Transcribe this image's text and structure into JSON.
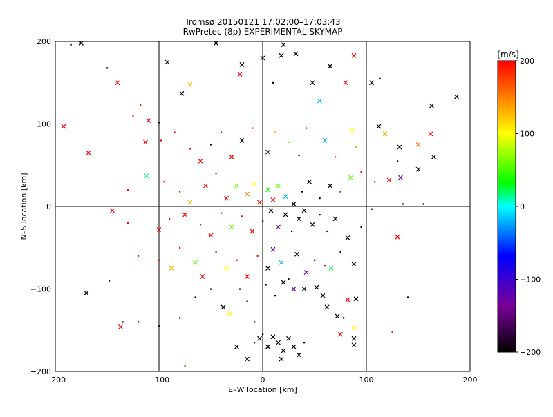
{
  "chart_data": {
    "type": "scatter",
    "title": "Tromsø 20150121 17:02:00–17:03:43",
    "subtitle": "RwPretec (8p) EXPERIMENTAL SKYMAP",
    "xlabel": "E–W location [km]",
    "ylabel": "N–S location [km]",
    "xlim": [
      -200,
      200
    ],
    "ylim": [
      -200,
      200
    ],
    "xticks": [
      -200,
      -100,
      0,
      100,
      200
    ],
    "yticks": [
      -200,
      -100,
      0,
      100,
      200
    ],
    "grid": true,
    "colorbar": {
      "label": "[m/s]",
      "min": -200,
      "max": 200,
      "ticks": [
        200,
        100,
        0,
        -100,
        -200
      ],
      "colormap": [
        "#000000",
        "#7a0099",
        "#0000ff",
        "#00ffff",
        "#00ff00",
        "#ffff00",
        "#ff0000"
      ]
    },
    "marker_types": [
      "dot",
      "cross"
    ],
    "points": [
      {
        "x": -185,
        "y": 196,
        "v": -200,
        "m": "dot"
      },
      {
        "x": -175,
        "y": 198,
        "v": -200,
        "m": "cross"
      },
      {
        "x": -150,
        "y": 168,
        "v": -200,
        "m": "dot"
      },
      {
        "x": -140,
        "y": 150,
        "v": 200,
        "m": "cross"
      },
      {
        "x": -125,
        "y": 110,
        "v": 200,
        "m": "dot"
      },
      {
        "x": -118,
        "y": 123,
        "v": 200,
        "m": "dot"
      },
      {
        "x": -110,
        "y": 104,
        "v": 200,
        "m": "cross"
      },
      {
        "x": -100,
        "y": 102,
        "v": -200,
        "m": "dot"
      },
      {
        "x": -92,
        "y": 175,
        "v": -200,
        "m": "cross"
      },
      {
        "x": -78,
        "y": 137,
        "v": -200,
        "m": "cross"
      },
      {
        "x": -70,
        "y": 148,
        "v": 130,
        "m": "cross"
      },
      {
        "x": -45,
        "y": 198,
        "v": -200,
        "m": "cross"
      },
      {
        "x": -22,
        "y": 160,
        "v": 200,
        "m": "cross"
      },
      {
        "x": -20,
        "y": 172,
        "v": -200,
        "m": "cross"
      },
      {
        "x": 0,
        "y": 180,
        "v": -200,
        "m": "cross"
      },
      {
        "x": 10,
        "y": 150,
        "v": -200,
        "m": "dot"
      },
      {
        "x": 18,
        "y": 183,
        "v": -200,
        "m": "cross"
      },
      {
        "x": 20,
        "y": 196,
        "v": -200,
        "m": "cross"
      },
      {
        "x": 32,
        "y": 185,
        "v": -200,
        "m": "cross"
      },
      {
        "x": 48,
        "y": 150,
        "v": -200,
        "m": "cross"
      },
      {
        "x": 55,
        "y": 128,
        "v": -20,
        "m": "cross"
      },
      {
        "x": 65,
        "y": 170,
        "v": -200,
        "m": "cross"
      },
      {
        "x": 80,
        "y": 150,
        "v": 200,
        "m": "cross"
      },
      {
        "x": 88,
        "y": 183,
        "v": 200,
        "m": "cross"
      },
      {
        "x": 105,
        "y": 150,
        "v": -200,
        "m": "cross"
      },
      {
        "x": 113,
        "y": 155,
        "v": -200,
        "m": "dot"
      },
      {
        "x": 163,
        "y": 122,
        "v": -200,
        "m": "cross"
      },
      {
        "x": 187,
        "y": 133,
        "v": -200,
        "m": "cross"
      },
      {
        "x": -192,
        "y": 97,
        "v": 200,
        "m": "cross"
      },
      {
        "x": -168,
        "y": 65,
        "v": 200,
        "m": "cross"
      },
      {
        "x": -113,
        "y": 78,
        "v": 200,
        "m": "cross"
      },
      {
        "x": -98,
        "y": 80,
        "v": 200,
        "m": "dot"
      },
      {
        "x": -85,
        "y": 90,
        "v": 200,
        "m": "dot"
      },
      {
        "x": -70,
        "y": 70,
        "v": 200,
        "m": "dot"
      },
      {
        "x": -60,
        "y": 55,
        "v": 200,
        "m": "cross"
      },
      {
        "x": -50,
        "y": 75,
        "v": -200,
        "m": "dot"
      },
      {
        "x": -40,
        "y": 90,
        "v": 200,
        "m": "dot"
      },
      {
        "x": -30,
        "y": 60,
        "v": 200,
        "m": "cross"
      },
      {
        "x": -20,
        "y": 80,
        "v": -200,
        "m": "cross"
      },
      {
        "x": -10,
        "y": 95,
        "v": 200,
        "m": "dot"
      },
      {
        "x": 5,
        "y": 66,
        "v": -200,
        "m": "cross"
      },
      {
        "x": 12,
        "y": 90,
        "v": 130,
        "m": "dot"
      },
      {
        "x": 25,
        "y": 78,
        "v": 60,
        "m": "dot"
      },
      {
        "x": 35,
        "y": 62,
        "v": -200,
        "m": "dot"
      },
      {
        "x": 42,
        "y": 95,
        "v": 200,
        "m": "dot"
      },
      {
        "x": 60,
        "y": 80,
        "v": -20,
        "m": "cross"
      },
      {
        "x": 70,
        "y": 60,
        "v": 200,
        "m": "dot"
      },
      {
        "x": 86,
        "y": 92,
        "v": 100,
        "m": "cross"
      },
      {
        "x": 90,
        "y": 72,
        "v": 60,
        "m": "dot"
      },
      {
        "x": 112,
        "y": 97,
        "v": -200,
        "m": "cross"
      },
      {
        "x": 118,
        "y": 88,
        "v": 130,
        "m": "cross"
      },
      {
        "x": 132,
        "y": 72,
        "v": -200,
        "m": "cross"
      },
      {
        "x": 150,
        "y": 75,
        "v": 160,
        "m": "cross"
      },
      {
        "x": 162,
        "y": 88,
        "v": 200,
        "m": "cross"
      },
      {
        "x": 165,
        "y": 60,
        "v": -200,
        "m": "cross"
      },
      {
        "x": 130,
        "y": 55,
        "v": -200,
        "m": "dot"
      },
      {
        "x": 150,
        "y": 45,
        "v": -200,
        "m": "cross"
      },
      {
        "x": -130,
        "y": 20,
        "v": 200,
        "m": "dot"
      },
      {
        "x": -112,
        "y": 37,
        "v": 20,
        "m": "cross"
      },
      {
        "x": -95,
        "y": 30,
        "v": 200,
        "m": "dot"
      },
      {
        "x": -80,
        "y": 18,
        "v": 200,
        "m": "dot"
      },
      {
        "x": -70,
        "y": 5,
        "v": 130,
        "m": "cross"
      },
      {
        "x": -55,
        "y": 25,
        "v": 200,
        "m": "cross"
      },
      {
        "x": -45,
        "y": 40,
        "v": 200,
        "m": "dot"
      },
      {
        "x": -35,
        "y": 10,
        "v": 200,
        "m": "cross"
      },
      {
        "x": -25,
        "y": 25,
        "v": 60,
        "m": "cross"
      },
      {
        "x": -15,
        "y": 15,
        "v": 150,
        "m": "cross"
      },
      {
        "x": -8,
        "y": 28,
        "v": 100,
        "m": "cross"
      },
      {
        "x": -3,
        "y": 5,
        "v": 200,
        "m": "cross"
      },
      {
        "x": 5,
        "y": 20,
        "v": 40,
        "m": "cross"
      },
      {
        "x": 10,
        "y": 8,
        "v": 200,
        "m": "cross"
      },
      {
        "x": 15,
        "y": 25,
        "v": 60,
        "m": "cross"
      },
      {
        "x": 22,
        "y": 12,
        "v": -20,
        "m": "cross"
      },
      {
        "x": 30,
        "y": 3,
        "v": -200,
        "m": "cross"
      },
      {
        "x": 38,
        "y": 18,
        "v": -200,
        "m": "dot"
      },
      {
        "x": 45,
        "y": 30,
        "v": -200,
        "m": "cross"
      },
      {
        "x": 55,
        "y": 10,
        "v": -200,
        "m": "dot"
      },
      {
        "x": 65,
        "y": 25,
        "v": -200,
        "m": "cross"
      },
      {
        "x": 75,
        "y": 18,
        "v": -120,
        "m": "dot"
      },
      {
        "x": 85,
        "y": 35,
        "v": 60,
        "m": "cross"
      },
      {
        "x": 95,
        "y": 42,
        "v": 200,
        "m": "dot"
      },
      {
        "x": 108,
        "y": 30,
        "v": 200,
        "m": "dot"
      },
      {
        "x": 122,
        "y": 32,
        "v": 200,
        "m": "cross"
      },
      {
        "x": 133,
        "y": 35,
        "v": -120,
        "m": "cross"
      },
      {
        "x": 135,
        "y": 3,
        "v": -200,
        "m": "dot"
      },
      {
        "x": 155,
        "y": 3,
        "v": -200,
        "m": "dot"
      },
      {
        "x": -145,
        "y": -5,
        "v": 200,
        "m": "cross"
      },
      {
        "x": -130,
        "y": -20,
        "v": 200,
        "m": "dot"
      },
      {
        "x": -100,
        "y": -28,
        "v": 200,
        "m": "cross"
      },
      {
        "x": -90,
        "y": -15,
        "v": 200,
        "m": "dot"
      },
      {
        "x": -75,
        "y": -10,
        "v": 200,
        "m": "cross"
      },
      {
        "x": -60,
        "y": -22,
        "v": 200,
        "m": "dot"
      },
      {
        "x": -50,
        "y": -35,
        "v": 200,
        "m": "cross"
      },
      {
        "x": -40,
        "y": -8,
        "v": 200,
        "m": "dot"
      },
      {
        "x": -30,
        "y": -25,
        "v": 60,
        "m": "cross"
      },
      {
        "x": -20,
        "y": -12,
        "v": 200,
        "m": "dot"
      },
      {
        "x": -10,
        "y": -30,
        "v": 200,
        "m": "cross"
      },
      {
        "x": 0,
        "y": -18,
        "v": -200,
        "m": "dot"
      },
      {
        "x": 8,
        "y": -5,
        "v": -200,
        "m": "cross"
      },
      {
        "x": 15,
        "y": -25,
        "v": -120,
        "m": "cross"
      },
      {
        "x": 22,
        "y": -10,
        "v": -200,
        "m": "cross"
      },
      {
        "x": 28,
        "y": -30,
        "v": -200,
        "m": "dot"
      },
      {
        "x": 35,
        "y": -15,
        "v": -200,
        "m": "cross"
      },
      {
        "x": 40,
        "y": -5,
        "v": -200,
        "m": "cross"
      },
      {
        "x": 48,
        "y": -22,
        "v": -200,
        "m": "cross"
      },
      {
        "x": 55,
        "y": -10,
        "v": -200,
        "m": "dot"
      },
      {
        "x": 62,
        "y": -30,
        "v": -120,
        "m": "dot"
      },
      {
        "x": 70,
        "y": -15,
        "v": -200,
        "m": "cross"
      },
      {
        "x": 82,
        "y": -38,
        "v": -200,
        "m": "cross"
      },
      {
        "x": 95,
        "y": -25,
        "v": -200,
        "m": "dot"
      },
      {
        "x": 105,
        "y": -3,
        "v": -200,
        "m": "dot"
      },
      {
        "x": 130,
        "y": -37,
        "v": 200,
        "m": "cross"
      },
      {
        "x": -120,
        "y": -60,
        "v": 200,
        "m": "dot"
      },
      {
        "x": -100,
        "y": -65,
        "v": 200,
        "m": "dot"
      },
      {
        "x": -88,
        "y": -75,
        "v": 130,
        "m": "cross"
      },
      {
        "x": -80,
        "y": -50,
        "v": 200,
        "m": "dot"
      },
      {
        "x": -65,
        "y": -68,
        "v": 60,
        "m": "cross"
      },
      {
        "x": -58,
        "y": -85,
        "v": 200,
        "m": "cross"
      },
      {
        "x": -45,
        "y": -55,
        "v": 200,
        "m": "dot"
      },
      {
        "x": -35,
        "y": -75,
        "v": 100,
        "m": "cross"
      },
      {
        "x": -25,
        "y": -65,
        "v": 200,
        "m": "dot"
      },
      {
        "x": -15,
        "y": -85,
        "v": 200,
        "m": "cross"
      },
      {
        "x": -5,
        "y": -60,
        "v": 200,
        "m": "dot"
      },
      {
        "x": 5,
        "y": -75,
        "v": -200,
        "m": "cross"
      },
      {
        "x": 10,
        "y": -52,
        "v": -120,
        "m": "cross"
      },
      {
        "x": 18,
        "y": -68,
        "v": -20,
        "m": "cross"
      },
      {
        "x": 25,
        "y": -88,
        "v": -200,
        "m": "dot"
      },
      {
        "x": 33,
        "y": -58,
        "v": -200,
        "m": "cross"
      },
      {
        "x": 42,
        "y": -80,
        "v": -120,
        "m": "cross"
      },
      {
        "x": 50,
        "y": -65,
        "v": -200,
        "m": "dot"
      },
      {
        "x": 60,
        "y": -72,
        "v": 200,
        "m": "dot"
      },
      {
        "x": 66,
        "y": -75,
        "v": 20,
        "m": "cross"
      },
      {
        "x": 75,
        "y": -55,
        "v": -200,
        "m": "dot"
      },
      {
        "x": 88,
        "y": -70,
        "v": -200,
        "m": "cross"
      },
      {
        "x": -170,
        "y": -105,
        "v": -200,
        "m": "cross"
      },
      {
        "x": -148,
        "y": -90,
        "v": -200,
        "m": "dot"
      },
      {
        "x": -135,
        "y": -140,
        "v": -200,
        "m": "dot"
      },
      {
        "x": -137,
        "y": -146,
        "v": 200,
        "m": "cross"
      },
      {
        "x": -120,
        "y": -140,
        "v": -200,
        "m": "dot"
      },
      {
        "x": -100,
        "y": -145,
        "v": -200,
        "m": "dot"
      },
      {
        "x": -80,
        "y": -135,
        "v": -200,
        "m": "dot"
      },
      {
        "x": -65,
        "y": -110,
        "v": -200,
        "m": "dot"
      },
      {
        "x": -50,
        "y": -100,
        "v": -200,
        "m": "dot"
      },
      {
        "x": -38,
        "y": -122,
        "v": -200,
        "m": "cross"
      },
      {
        "x": -32,
        "y": -130,
        "v": 100,
        "m": "cross"
      },
      {
        "x": -22,
        "y": -100,
        "v": -200,
        "m": "dot"
      },
      {
        "x": -15,
        "y": -115,
        "v": -200,
        "m": "dot"
      },
      {
        "x": -8,
        "y": -140,
        "v": -200,
        "m": "dot"
      },
      {
        "x": 3,
        "y": -95,
        "v": -200,
        "m": "dot"
      },
      {
        "x": 12,
        "y": -108,
        "v": -200,
        "m": "dot"
      },
      {
        "x": 20,
        "y": -92,
        "v": -200,
        "m": "cross"
      },
      {
        "x": 30,
        "y": -100,
        "v": -120,
        "m": "cross"
      },
      {
        "x": 40,
        "y": -100,
        "v": -200,
        "m": "cross"
      },
      {
        "x": 52,
        "y": -98,
        "v": -200,
        "m": "cross"
      },
      {
        "x": 58,
        "y": -108,
        "v": -200,
        "m": "cross"
      },
      {
        "x": 62,
        "y": -122,
        "v": -200,
        "m": "cross"
      },
      {
        "x": 72,
        "y": -133,
        "v": -200,
        "m": "cross"
      },
      {
        "x": 82,
        "y": -113,
        "v": 200,
        "m": "cross"
      },
      {
        "x": 90,
        "y": -112,
        "v": -200,
        "m": "cross"
      },
      {
        "x": 78,
        "y": -135,
        "v": -200,
        "m": "dot"
      },
      {
        "x": -25,
        "y": -170,
        "v": -200,
        "m": "cross"
      },
      {
        "x": -15,
        "y": -185,
        "v": -200,
        "m": "cross"
      },
      {
        "x": -8,
        "y": -165,
        "v": -200,
        "m": "dot"
      },
      {
        "x": 0,
        "y": -155,
        "v": -200,
        "m": "dot"
      },
      {
        "x": -3,
        "y": -160,
        "v": -200,
        "m": "cross"
      },
      {
        "x": 5,
        "y": -170,
        "v": -200,
        "m": "cross"
      },
      {
        "x": 10,
        "y": -158,
        "v": -200,
        "m": "cross"
      },
      {
        "x": 15,
        "y": -165,
        "v": -200,
        "m": "cross"
      },
      {
        "x": 20,
        "y": -175,
        "v": -200,
        "m": "cross"
      },
      {
        "x": 25,
        "y": -160,
        "v": -200,
        "m": "cross"
      },
      {
        "x": 30,
        "y": -170,
        "v": -200,
        "m": "cross"
      },
      {
        "x": 35,
        "y": -180,
        "v": -200,
        "m": "cross"
      },
      {
        "x": 18,
        "y": -185,
        "v": -200,
        "m": "cross"
      },
      {
        "x": 40,
        "y": -165,
        "v": -200,
        "m": "dot"
      },
      {
        "x": 88,
        "y": -147,
        "v": 100,
        "m": "cross"
      },
      {
        "x": 88,
        "y": -160,
        "v": -200,
        "m": "cross"
      },
      {
        "x": 88,
        "y": -168,
        "v": -200,
        "m": "cross"
      },
      {
        "x": 75,
        "y": -155,
        "v": 200,
        "m": "cross"
      },
      {
        "x": -75,
        "y": -193,
        "v": 200,
        "m": "dot"
      },
      {
        "x": 125,
        "y": -152,
        "v": 200,
        "m": "dot"
      },
      {
        "x": 140,
        "y": -110,
        "v": -200,
        "m": "dot"
      }
    ]
  }
}
